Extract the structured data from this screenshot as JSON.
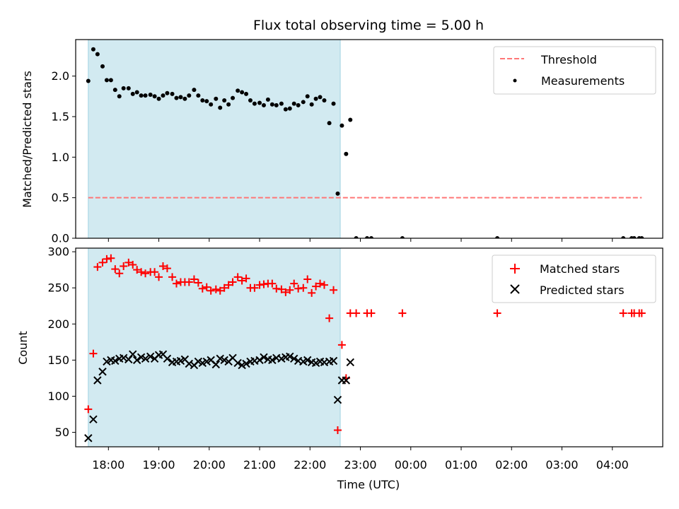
{
  "chart_data": [
    {
      "type": "scatter",
      "title": "Flux total observing time = 5.00 h",
      "xlabel": "",
      "ylabel": "Matched/Predicted stars",
      "ylim": [
        0,
        2.45
      ],
      "xlim": [
        "17:21",
        "05:00"
      ],
      "yticks": [
        "0.0",
        "0.5",
        "1.0",
        "1.5",
        "2.0"
      ],
      "shaded_interval": [
        "17:36",
        "22:36"
      ],
      "threshold": {
        "name": "Threshold",
        "value": 0.5,
        "color": "#ff7777"
      },
      "legend_position": "upper right",
      "series": [
        {
          "name": "Measurements",
          "color": "#000000",
          "marker": "dot",
          "points": [
            [
              "17:36",
              1.94
            ],
            [
              "17:42",
              2.33
            ],
            [
              "17:47",
              2.27
            ],
            [
              "17:53",
              2.12
            ],
            [
              "17:58",
              1.95
            ],
            [
              "18:03",
              1.95
            ],
            [
              "18:08",
              1.83
            ],
            [
              "18:13",
              1.75
            ],
            [
              "18:18",
              1.85
            ],
            [
              "18:24",
              1.85
            ],
            [
              "18:29",
              1.78
            ],
            [
              "18:34",
              1.8
            ],
            [
              "18:39",
              1.76
            ],
            [
              "18:44",
              1.76
            ],
            [
              "18:50",
              1.77
            ],
            [
              "18:55",
              1.75
            ],
            [
              "19:00",
              1.72
            ],
            [
              "19:05",
              1.76
            ],
            [
              "19:10",
              1.79
            ],
            [
              "19:16",
              1.78
            ],
            [
              "19:21",
              1.73
            ],
            [
              "19:26",
              1.74
            ],
            [
              "19:31",
              1.72
            ],
            [
              "19:36",
              1.76
            ],
            [
              "19:42",
              1.83
            ],
            [
              "19:47",
              1.76
            ],
            [
              "19:52",
              1.7
            ],
            [
              "19:57",
              1.69
            ],
            [
              "20:02",
              1.65
            ],
            [
              "20:08",
              1.72
            ],
            [
              "20:13",
              1.61
            ],
            [
              "20:18",
              1.7
            ],
            [
              "20:23",
              1.65
            ],
            [
              "20:28",
              1.73
            ],
            [
              "20:34",
              1.82
            ],
            [
              "20:39",
              1.8
            ],
            [
              "20:44",
              1.78
            ],
            [
              "20:49",
              1.7
            ],
            [
              "20:54",
              1.66
            ],
            [
              "21:00",
              1.67
            ],
            [
              "21:05",
              1.64
            ],
            [
              "21:10",
              1.71
            ],
            [
              "21:15",
              1.65
            ],
            [
              "21:20",
              1.64
            ],
            [
              "21:26",
              1.66
            ],
            [
              "21:31",
              1.59
            ],
            [
              "21:36",
              1.6
            ],
            [
              "21:41",
              1.66
            ],
            [
              "21:46",
              1.64
            ],
            [
              "21:52",
              1.68
            ],
            [
              "21:57",
              1.75
            ],
            [
              "22:02",
              1.65
            ],
            [
              "22:07",
              1.72
            ],
            [
              "22:12",
              1.74
            ],
            [
              "22:17",
              1.7
            ],
            [
              "22:23",
              1.42
            ],
            [
              "22:28",
              1.66
            ],
            [
              "22:33",
              0.55
            ],
            [
              "22:38",
              1.39
            ],
            [
              "22:43",
              1.04
            ],
            [
              "22:48",
              1.46
            ],
            [
              "22:55",
              0.0
            ],
            [
              "23:08",
              0.0
            ],
            [
              "23:13",
              0.0
            ],
            [
              "23:50",
              0.0
            ],
            [
              "01:43",
              0.0
            ],
            [
              "04:13",
              0.0
            ],
            [
              "04:23",
              0.0
            ],
            [
              "04:26",
              0.0
            ],
            [
              "04:32",
              0.0
            ],
            [
              "04:35",
              0.0
            ]
          ]
        }
      ]
    },
    {
      "type": "scatter",
      "xlabel": "Time (UTC)",
      "ylabel": "Count",
      "ylim": [
        30,
        305
      ],
      "xlim": [
        "17:21",
        "05:00"
      ],
      "xticks": [
        "18:00",
        "19:00",
        "20:00",
        "21:00",
        "22:00",
        "23:00",
        "00:00",
        "01:00",
        "02:00",
        "03:00",
        "04:00"
      ],
      "yticks": [
        "50",
        "100",
        "150",
        "200",
        "250",
        "300"
      ],
      "shaded_interval": [
        "17:36",
        "22:36"
      ],
      "legend_position": "upper right",
      "series": [
        {
          "name": "Matched stars",
          "color": "#ff0000",
          "marker": "plus",
          "points": [
            [
              "17:36",
              82
            ],
            [
              "17:42",
              159
            ],
            [
              "17:47",
              279
            ],
            [
              "17:53",
              285
            ],
            [
              "17:58",
              290
            ],
            [
              "18:03",
              291
            ],
            [
              "18:08",
              276
            ],
            [
              "18:13",
              270
            ],
            [
              "18:18",
              280
            ],
            [
              "18:24",
              285
            ],
            [
              "18:29",
              282
            ],
            [
              "18:34",
              275
            ],
            [
              "18:39",
              272
            ],
            [
              "18:44",
              270
            ],
            [
              "18:50",
              272
            ],
            [
              "18:55",
              272
            ],
            [
              "19:00",
              265
            ],
            [
              "19:05",
              280
            ],
            [
              "19:10",
              277
            ],
            [
              "19:16",
              265
            ],
            [
              "19:21",
              256
            ],
            [
              "19:26",
              258
            ],
            [
              "19:31",
              258
            ],
            [
              "19:36",
              258
            ],
            [
              "19:42",
              262
            ],
            [
              "19:47",
              257
            ],
            [
              "19:52",
              249
            ],
            [
              "19:57",
              251
            ],
            [
              "20:02",
              246
            ],
            [
              "20:08",
              248
            ],
            [
              "20:13",
              246
            ],
            [
              "20:18",
              250
            ],
            [
              "20:23",
              254
            ],
            [
              "20:28",
              258
            ],
            [
              "20:34",
              265
            ],
            [
              "20:39",
              260
            ],
            [
              "20:44",
              263
            ],
            [
              "20:49",
              250
            ],
            [
              "20:54",
              250
            ],
            [
              "21:00",
              254
            ],
            [
              "21:05",
              255
            ],
            [
              "21:10",
              256
            ],
            [
              "21:15",
              256
            ],
            [
              "21:20",
              249
            ],
            [
              "21:26",
              248
            ],
            [
              "21:31",
              244
            ],
            [
              "21:36",
              247
            ],
            [
              "21:41",
              256
            ],
            [
              "21:46",
              249
            ],
            [
              "21:52",
              250
            ],
            [
              "21:57",
              262
            ],
            [
              "22:02",
              243
            ],
            [
              "22:07",
              252
            ],
            [
              "22:12",
              256
            ],
            [
              "22:17",
              254
            ],
            [
              "22:23",
              208
            ],
            [
              "22:28",
              247
            ],
            [
              "22:33",
              53
            ],
            [
              "22:38",
              171
            ],
            [
              "22:43",
              125
            ],
            [
              "22:48",
              215
            ],
            [
              "22:55",
              215
            ],
            [
              "23:08",
              215
            ],
            [
              "23:13",
              215
            ],
            [
              "23:50",
              215
            ],
            [
              "01:43",
              215
            ],
            [
              "04:13",
              215
            ],
            [
              "04:23",
              215
            ],
            [
              "04:26",
              215
            ],
            [
              "04:32",
              215
            ],
            [
              "04:35",
              215
            ]
          ]
        },
        {
          "name": "Predicted stars",
          "color": "#000000",
          "marker": "x",
          "points": [
            [
              "17:36",
              42
            ],
            [
              "17:42",
              68
            ],
            [
              "17:47",
              122
            ],
            [
              "17:53",
              134
            ],
            [
              "17:58",
              148
            ],
            [
              "18:03",
              150
            ],
            [
              "18:08",
              149
            ],
            [
              "18:13",
              152
            ],
            [
              "18:18",
              153
            ],
            [
              "18:24",
              151
            ],
            [
              "18:29",
              158
            ],
            [
              "18:34",
              150
            ],
            [
              "18:39",
              154
            ],
            [
              "18:44",
              152
            ],
            [
              "18:50",
              155
            ],
            [
              "18:55",
              152
            ],
            [
              "19:00",
              157
            ],
            [
              "19:05",
              158
            ],
            [
              "19:10",
              152
            ],
            [
              "19:16",
              147
            ],
            [
              "19:21",
              148
            ],
            [
              "19:26",
              149
            ],
            [
              "19:31",
              151
            ],
            [
              "19:36",
              145
            ],
            [
              "19:42",
              143
            ],
            [
              "19:47",
              148
            ],
            [
              "19:52",
              146
            ],
            [
              "19:57",
              148
            ],
            [
              "20:02",
              150
            ],
            [
              "20:08",
              144
            ],
            [
              "20:13",
              152
            ],
            [
              "20:18",
              150
            ],
            [
              "20:23",
              148
            ],
            [
              "20:28",
              153
            ],
            [
              "20:34",
              146
            ],
            [
              "20:39",
              143
            ],
            [
              "20:44",
              145
            ],
            [
              "20:49",
              148
            ],
            [
              "20:54",
              149
            ],
            [
              "21:00",
              150
            ],
            [
              "21:05",
              154
            ],
            [
              "21:10",
              151
            ],
            [
              "21:15",
              150
            ],
            [
              "21:20",
              153
            ],
            [
              "21:26",
              152
            ],
            [
              "21:31",
              154
            ],
            [
              "21:36",
              155
            ],
            [
              "21:41",
              152
            ],
            [
              "21:46",
              149
            ],
            [
              "21:52",
              148
            ],
            [
              "21:57",
              150
            ],
            [
              "22:02",
              147
            ],
            [
              "22:07",
              146
            ],
            [
              "22:12",
              148
            ],
            [
              "22:17",
              147
            ],
            [
              "22:23",
              148
            ],
            [
              "22:28",
              149
            ],
            [
              "22:33",
              95
            ],
            [
              "22:38",
              122
            ],
            [
              "22:43",
              122
            ],
            [
              "22:48",
              147
            ]
          ]
        }
      ]
    }
  ],
  "colors": {
    "shade": "#add8e6",
    "threshold": "#ff7777",
    "matched": "#ff0000",
    "predicted": "#000000",
    "measurement": "#000000"
  }
}
